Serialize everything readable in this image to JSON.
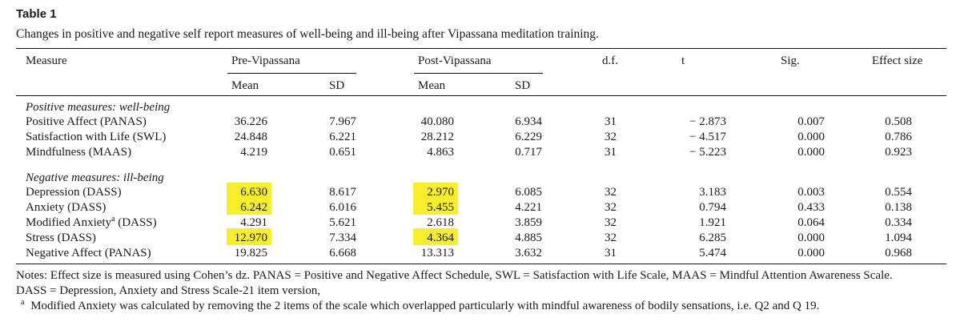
{
  "table_title": "Table 1",
  "caption": "Changes in positive and negative self report measures of well-being and ill-being after Vipassana meditation training.",
  "header": {
    "measure": "Measure",
    "pre": "Pre-Vipassana",
    "post": "Post-Vipassana",
    "df": "d.f.",
    "t": "t",
    "sig": "Sig.",
    "effect": "Effect size",
    "mean": "Mean",
    "sd": "SD"
  },
  "sections": [
    {
      "label": "Positive measures: well-being",
      "rows": [
        {
          "measure": "Positive Affect (PANAS)",
          "pre_mean": "36.226",
          "pre_sd": "7.967",
          "post_mean": "40.080",
          "post_sd": "6.934",
          "df": "31",
          "t": "− 2.873",
          "sig": "0.007",
          "effect": "0.508"
        },
        {
          "measure": "Satisfaction with Life (SWL)",
          "pre_mean": "24.848",
          "pre_sd": "6.221",
          "post_mean": "28.212",
          "post_sd": "6.229",
          "df": "32",
          "t": "− 4.517",
          "sig": "0.000",
          "effect": "0.786"
        },
        {
          "measure": "Mindfulness (MAAS)",
          "pre_mean": "4.219",
          "pre_sd": "0.651",
          "post_mean": "4.863",
          "post_sd": "0.717",
          "df": "31",
          "t": "− 5.223",
          "sig": "0.000",
          "effect": "0.923"
        }
      ]
    },
    {
      "label": "Negative measures: ill-being",
      "rows": [
        {
          "measure": "Depression (DASS)",
          "pre_mean": "6.630",
          "pre_sd": "8.617",
          "post_mean": "2.970",
          "post_sd": "6.085",
          "df": "32",
          "t": "3.183",
          "sig": "0.003",
          "effect": "0.554",
          "highlight": true
        },
        {
          "measure": "Anxiety (DASS)",
          "pre_mean": "6.242",
          "pre_sd": "6.016",
          "post_mean": "5.455",
          "post_sd": "4.221",
          "df": "32",
          "t": "0.794",
          "sig": "0.433",
          "effect": "0.138",
          "highlight": true
        },
        {
          "measure": "Modified Anxiety",
          "measure_sup": "a",
          "measure_suffix": " (DASS)",
          "pre_mean": "4.291",
          "pre_sd": "5.621",
          "post_mean": "2.618",
          "post_sd": "3.859",
          "df": "32",
          "t": "1.921",
          "sig": "0.064",
          "effect": "0.334"
        },
        {
          "measure": "Stress (DASS)",
          "pre_mean": "12.970",
          "pre_sd": "7.334",
          "post_mean": "4.364",
          "post_sd": "4.885",
          "df": "32",
          "t": "6.285",
          "sig": "0.000",
          "effect": "1.094",
          "highlight": true
        },
        {
          "measure": "Negative Affect (PANAS)",
          "pre_mean": "19.825",
          "pre_sd": "6.668",
          "post_mean": "13.313",
          "post_sd": "3.632",
          "df": "31",
          "t": "5.474",
          "sig": "0.000",
          "effect": "0.968"
        }
      ]
    }
  ],
  "notes": {
    "line1": "Notes: Effect size is measured using Cohen’s dz. PANAS = Positive and Negative Affect Schedule, SWL = Satisfaction with Life Scale, MAAS = Mindful Attention Awareness Scale.",
    "line2": "DASS = Depression, Anxiety and Stress Scale-21 item version,",
    "footnote_mark": "a",
    "footnote": "Modified Anxiety was calculated by removing the 2 items of the scale which overlapped particularly with mindful awareness of bodily sensations, i.e. Q2 and Q 19."
  },
  "colors": {
    "highlight": "#f8ee2a",
    "rule": "#111111"
  }
}
